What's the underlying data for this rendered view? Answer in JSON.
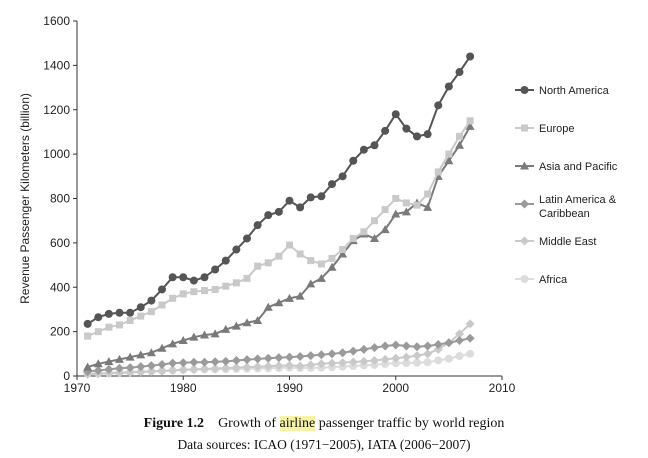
{
  "chart_data": {
    "type": "line",
    "xlabel": "",
    "ylabel": "Revenue Passenger Kilometers (billion)",
    "xlim": [
      1970,
      2010
    ],
    "ylim": [
      0,
      1600
    ],
    "xticks": [
      1970,
      1980,
      1990,
      2000,
      2010
    ],
    "yticks": [
      0,
      200,
      400,
      600,
      800,
      1000,
      1200,
      1400,
      1600
    ],
    "legend_position": "right",
    "series": [
      {
        "name": "North America",
        "marker": "circle",
        "color": "#555555",
        "x": [
          1971,
          1972,
          1973,
          1974,
          1975,
          1976,
          1977,
          1978,
          1979,
          1980,
          1981,
          1982,
          1983,
          1984,
          1985,
          1986,
          1987,
          1988,
          1989,
          1990,
          1991,
          1992,
          1993,
          1994,
          1995,
          1996,
          1997,
          1998,
          1999,
          2000,
          2001,
          2002,
          2003,
          2004,
          2005,
          2006,
          2007
        ],
        "values": [
          235,
          265,
          280,
          285,
          285,
          310,
          340,
          390,
          445,
          445,
          430,
          445,
          480,
          520,
          570,
          620,
          680,
          725,
          740,
          790,
          760,
          805,
          810,
          865,
          900,
          970,
          1020,
          1040,
          1105,
          1180,
          1115,
          1080,
          1090,
          1220,
          1305,
          1370,
          1440
        ]
      },
      {
        "name": "Europe",
        "marker": "square",
        "color": "#c9c9c9",
        "x": [
          1971,
          1972,
          1973,
          1974,
          1975,
          1976,
          1977,
          1978,
          1979,
          1980,
          1981,
          1982,
          1983,
          1984,
          1985,
          1986,
          1987,
          1988,
          1989,
          1990,
          1991,
          1992,
          1993,
          1994,
          1995,
          1996,
          1997,
          1998,
          1999,
          2000,
          2001,
          2002,
          2003,
          2004,
          2005,
          2006,
          2007
        ],
        "values": [
          180,
          200,
          220,
          230,
          250,
          270,
          290,
          320,
          350,
          370,
          380,
          385,
          390,
          405,
          420,
          440,
          495,
          510,
          540,
          590,
          550,
          520,
          505,
          530,
          570,
          620,
          650,
          700,
          750,
          800,
          780,
          770,
          820,
          920,
          1000,
          1080,
          1150
        ]
      },
      {
        "name": "Asia and Pacific",
        "marker": "triangle",
        "color": "#7a7a7a",
        "x": [
          1971,
          1972,
          1973,
          1974,
          1975,
          1976,
          1977,
          1978,
          1979,
          1980,
          1981,
          1982,
          1983,
          1984,
          1985,
          1986,
          1987,
          1988,
          1989,
          1990,
          1991,
          1992,
          1993,
          1994,
          1995,
          1996,
          1997,
          1998,
          1999,
          2000,
          2001,
          2002,
          2003,
          2004,
          2005,
          2006,
          2007
        ],
        "values": [
          40,
          55,
          65,
          75,
          85,
          95,
          105,
          125,
          145,
          160,
          175,
          185,
          190,
          210,
          225,
          240,
          250,
          310,
          330,
          350,
          360,
          415,
          440,
          490,
          550,
          610,
          640,
          620,
          660,
          730,
          740,
          780,
          760,
          900,
          970,
          1040,
          1125
        ]
      },
      {
        "name": "Latin America & Caribbean",
        "marker": "diamond",
        "color": "#9a9a9a",
        "x": [
          1971,
          1972,
          1973,
          1974,
          1975,
          1976,
          1977,
          1978,
          1979,
          1980,
          1981,
          1982,
          1983,
          1984,
          1985,
          1986,
          1987,
          1988,
          1989,
          1990,
          1991,
          1992,
          1993,
          1994,
          1995,
          1996,
          1997,
          1998,
          1999,
          2000,
          2001,
          2002,
          2003,
          2004,
          2005,
          2006,
          2007
        ],
        "values": [
          20,
          25,
          30,
          35,
          38,
          42,
          47,
          52,
          58,
          60,
          62,
          62,
          64,
          66,
          70,
          74,
          77,
          80,
          83,
          85,
          88,
          92,
          96,
          100,
          105,
          112,
          120,
          128,
          135,
          140,
          135,
          132,
          135,
          142,
          150,
          160,
          170
        ]
      },
      {
        "name": "Middle East",
        "marker": "diamond",
        "color": "#c9c9c9",
        "x": [
          1971,
          1972,
          1973,
          1974,
          1975,
          1976,
          1977,
          1978,
          1979,
          1980,
          1981,
          1982,
          1983,
          1984,
          1985,
          1986,
          1987,
          1988,
          1989,
          1990,
          1991,
          1992,
          1993,
          1994,
          1995,
          1996,
          1997,
          1998,
          1999,
          2000,
          2001,
          2002,
          2003,
          2004,
          2005,
          2006,
          2007
        ],
        "values": [
          8,
          10,
          12,
          14,
          16,
          18,
          20,
          22,
          25,
          28,
          30,
          32,
          34,
          36,
          38,
          40,
          42,
          44,
          46,
          48,
          45,
          50,
          55,
          58,
          60,
          63,
          66,
          70,
          75,
          80,
          85,
          92,
          100,
          120,
          150,
          190,
          235
        ]
      },
      {
        "name": "Africa",
        "marker": "circle",
        "color": "#dcdcdc",
        "x": [
          1971,
          1972,
          1973,
          1974,
          1975,
          1976,
          1977,
          1978,
          1979,
          1980,
          1981,
          1982,
          1983,
          1984,
          1985,
          1986,
          1987,
          1988,
          1989,
          1990,
          1991,
          1992,
          1993,
          1994,
          1995,
          1996,
          1997,
          1998,
          1999,
          2000,
          2001,
          2002,
          2003,
          2004,
          2005,
          2006,
          2007
        ],
        "values": [
          10,
          12,
          14,
          16,
          18,
          20,
          22,
          24,
          26,
          28,
          29,
          30,
          30,
          31,
          32,
          33,
          34,
          35,
          36,
          38,
          36,
          37,
          38,
          40,
          42,
          45,
          48,
          50,
          54,
          58,
          58,
          60,
          62,
          70,
          78,
          90,
          100
        ]
      }
    ]
  },
  "caption": {
    "figure_label": "Figure 1.2",
    "text_before": "Growth of",
    "highlight": "airline",
    "text_after": "passenger traffic by world region",
    "sources": "Data sources: ICAO (1971−2005), IATA (2006−2007)"
  }
}
